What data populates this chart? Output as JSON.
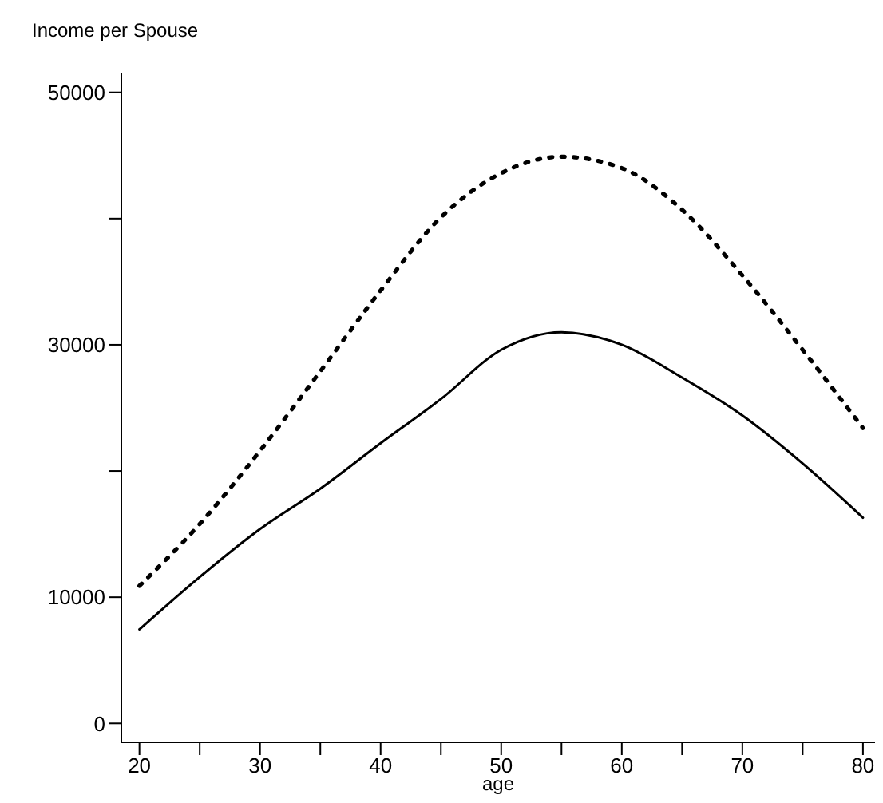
{
  "chart_data": {
    "type": "line",
    "ylabel": "Income per Spouse",
    "xlabel": "age",
    "x": [
      20,
      25,
      30,
      35,
      40,
      45,
      50,
      55,
      60,
      65,
      70,
      75,
      80
    ],
    "series": [
      {
        "color": "#000000",
        "line_style": "solid",
        "values": [
          7450,
          11600,
          15400,
          18600,
          22200,
          25700,
          29600,
          31000,
          30000,
          27400,
          24400,
          20600,
          16300
        ]
      },
      {
        "color": "#000000",
        "line_style": "dotted",
        "values": [
          10900,
          15800,
          21600,
          27900,
          34300,
          40100,
          43600,
          44900,
          44000,
          40700,
          35500,
          29600,
          23400
        ]
      }
    ],
    "xlim": [
      18.5,
      81
    ],
    "xticks": [
      20,
      {
        "value": 25,
        "label": null
      },
      30,
      {
        "value": 35,
        "label": null
      },
      40,
      {
        "value": 45,
        "label": null
      },
      50,
      {
        "value": 55,
        "label": null
      },
      60,
      {
        "value": 65,
        "label": null
      },
      70,
      {
        "value": 75,
        "label": null
      },
      80
    ],
    "ylim": [
      -1500,
      51500
    ],
    "yticks": [
      0,
      10000,
      {
        "value": 20000,
        "label": null
      },
      30000,
      {
        "value": 40000,
        "label": null
      },
      50000
    ],
    "grid": false,
    "legend": false,
    "marker": "none"
  }
}
